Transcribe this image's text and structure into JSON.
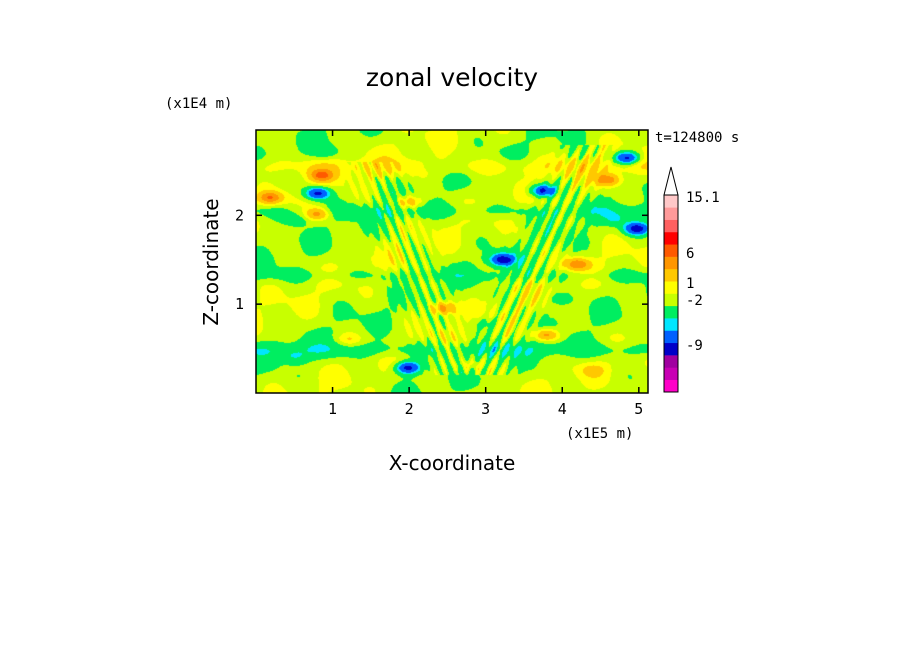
{
  "chart_data": {
    "type": "heatmap",
    "title": "zonal velocity",
    "xlabel": "X-coordinate",
    "ylabel": "Z-coordinate",
    "x_units": "(x1E5 m)",
    "y_units": "(x1E4 m)",
    "time_label": "t=124800 s",
    "xlim": [
      0,
      5.12
    ],
    "ylim": [
      0,
      2.96
    ],
    "x_ticks": [
      1,
      2,
      3,
      4,
      5
    ],
    "y_ticks": [
      1,
      2
    ],
    "grid": false,
    "colorbar": {
      "colors": [
        "#ff00c8",
        "#c800b4",
        "#a000a0",
        "#0000c8",
        "#0060ff",
        "#00e6ff",
        "#00ee60",
        "#c8ff00",
        "#ffff00",
        "#ffc800",
        "#ff9600",
        "#ff5a00",
        "#ff0000",
        "#ff6060",
        "#ff9a9a",
        "#ffc8c8"
      ],
      "tick_labels": [
        "-9",
        "-2",
        "1",
        "6",
        "15.1"
      ],
      "tick_levels": [
        -9,
        -2,
        1,
        6,
        15.1
      ],
      "extend": "max"
    },
    "features": [
      {
        "kind": "max",
        "x": 0.8,
        "z": 2.25,
        "value": -6
      },
      {
        "kind": "max",
        "x": 3.75,
        "z": 2.28,
        "value": -6
      },
      {
        "kind": "max",
        "x": 4.85,
        "z": 2.65,
        "value": -6
      },
      {
        "kind": "max",
        "x": 4.98,
        "z": 1.85,
        "value": -6
      },
      {
        "kind": "max",
        "x": 3.22,
        "z": 1.5,
        "value": -6
      },
      {
        "kind": "max",
        "x": 1.98,
        "z": 0.28,
        "value": -6
      },
      {
        "kind": "max",
        "x": 0.85,
        "z": 2.45,
        "value": 4
      },
      {
        "kind": "max",
        "x": 0.8,
        "z": 2.02,
        "value": 4
      },
      {
        "kind": "max",
        "x": 0.18,
        "z": 2.2,
        "value": 4
      },
      {
        "kind": "max",
        "x": 4.6,
        "z": 2.4,
        "value": 4
      },
      {
        "kind": "max",
        "x": 4.2,
        "z": 1.45,
        "value": 4
      },
      {
        "kind": "max",
        "x": 3.8,
        "z": 0.65,
        "value": 4
      },
      {
        "kind": "max",
        "x": 2.45,
        "z": 0.95,
        "value": 4
      },
      {
        "kind": "max",
        "x": 2.0,
        "z": 2.15,
        "value": 3
      },
      {
        "kind": "max",
        "x": 0.5,
        "z": 0.4,
        "value": -1.5
      },
      {
        "kind": "max",
        "x": 0.55,
        "z": 1.95,
        "value": -1.5
      },
      {
        "kind": "max",
        "x": 0.9,
        "z": 2.72,
        "value": -1.5
      },
      {
        "kind": "max",
        "x": 4.0,
        "z": 1.05,
        "value": -1.5
      },
      {
        "kind": "max",
        "x": 4.7,
        "z": 1.95,
        "value": -1.5
      },
      {
        "kind": "max",
        "x": 3.0,
        "z": 0.78,
        "value": -1.5
      },
      {
        "kind": "max",
        "x": 2.3,
        "z": 2.55,
        "value": -1
      },
      {
        "kind": "max",
        "x": 2.8,
        "z": 0.3,
        "value": 1.5
      },
      {
        "kind": "max",
        "x": 4.4,
        "z": 0.25,
        "value": 1.5
      },
      {
        "kind": "max",
        "x": 1.2,
        "z": 0.6,
        "value": 1.5
      },
      {
        "kind": "band",
        "z": 0.48,
        "amp": -1.3,
        "width": 0.09
      },
      {
        "kind": "band",
        "z": 1.32,
        "amp": -0.8,
        "width": 0.07
      },
      {
        "kind": "band",
        "z": 2.55,
        "amp": 1.1,
        "width": 0.1
      },
      {
        "kind": "band",
        "z": 2.05,
        "amp": -1.0,
        "width": 0.08
      },
      {
        "kind": "wave",
        "xc": 3.0,
        "z0": 0.2,
        "z1": 2.8,
        "slope": 1.05,
        "amp": 1.4,
        "period": 0.16
      },
      {
        "kind": "wave",
        "xc": 2.6,
        "z0": 0.2,
        "z1": 2.6,
        "slope": -0.9,
        "amp": 1.2,
        "period": 0.14
      }
    ]
  }
}
